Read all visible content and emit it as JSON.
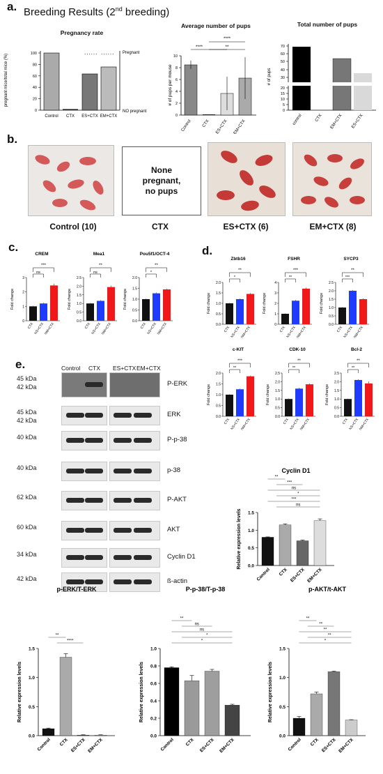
{
  "panels": {
    "a": "a.",
    "b": "b.",
    "c": "c.",
    "d": "d.",
    "e": "e."
  },
  "header": {
    "title_main": "Breeding Results (2",
    "title_sup": "nd",
    "title_end": " breeding)"
  },
  "panel_a": {
    "pregnancy": {
      "title": "Pregnancy rate",
      "ylabel": "pregnant mice/total mice (%)",
      "yticks": [
        "0",
        "20",
        "40",
        "60",
        "80",
        "100"
      ],
      "right_top": "Pregnant",
      "right_bottom": "NO pregnant",
      "dots": "......"
    },
    "pups": {
      "title": "Average number of pups",
      "ylabel": "# of pups per mouse",
      "yticks": [
        "0",
        "2",
        "4",
        "6",
        "8",
        "10"
      ],
      "sig": [
        "****",
        "**",
        "****"
      ]
    },
    "total": {
      "title": "Total number of pups",
      "ylabel": "# of pups",
      "yticks": [
        "0",
        "5",
        "10",
        "15",
        "20",
        "30",
        "40",
        "50",
        "60",
        "70"
      ]
    }
  },
  "panel_b": {
    "none_text": [
      "None",
      "pregnant,",
      "no pups"
    ],
    "labels": [
      "Control (10)",
      "CTX",
      "ES+CTX (6)",
      "EM+CTX (8)"
    ]
  },
  "panel_c": {
    "ylabel": "Fold change",
    "groups": [
      "CTX",
      "NS+CTX",
      "NM+CTX"
    ]
  },
  "panel_d": {
    "ylabel": "Fold change",
    "groups": [
      "CTX",
      "NS+CTX",
      "NM+CTX"
    ]
  },
  "panel_e": {
    "lanes": [
      "Control",
      "CTX",
      "ES+CTX",
      "EM+CTX"
    ],
    "blots": [
      {
        "kda": [
          "45 kDa",
          "42 kDa"
        ],
        "ab": "P-ERK"
      },
      {
        "kda": [
          "45 kDa",
          "42 kDa"
        ],
        "ab": "ERK"
      },
      {
        "kda": [
          "40 kDa"
        ],
        "ab": "P-p-38"
      },
      {
        "kda": [
          "40 kDa"
        ],
        "ab": "p-38"
      },
      {
        "kda": [
          "62 kDa"
        ],
        "ab": "P-AKT"
      },
      {
        "kda": [
          "60 kDa"
        ],
        "ab": "AKT"
      },
      {
        "kda": [
          "34 kDa"
        ],
        "ab": "Cyclin D1"
      },
      {
        "kda": [
          "42 kDa"
        ],
        "ab": "ß-actin"
      }
    ]
  },
  "quant": {
    "ylabel": "Relative expression levels",
    "groups": [
      "Control",
      "CTX",
      "ES+CTX",
      "EM+CTX"
    ]
  },
  "chart_data": [
    {
      "type": "bar",
      "title": "Pregnancy rate",
      "categories": [
        "Control",
        "CTX",
        "ES+CTX",
        "EM+CTX"
      ],
      "values": [
        100,
        0,
        63,
        75
      ],
      "ylabel": "pregnant mice/total mice (%)",
      "ylim": [
        0,
        110
      ]
    },
    {
      "type": "bar",
      "title": "Average number of pups",
      "categories": [
        "Control",
        "CTX",
        "ES+CTX",
        "EM+CTX"
      ],
      "values": [
        8.5,
        0,
        3.6,
        6.2
      ],
      "errors": [
        0.6,
        0.1,
        2.8,
        3.6
      ],
      "ylabel": "# of pups per mouse",
      "ylim": [
        0,
        11
      ]
    },
    {
      "type": "bar",
      "title": "Total number of pups",
      "categories": [
        "control",
        "CTX",
        "EM+CTX",
        "ES+CTX"
      ],
      "values": [
        70,
        0,
        50,
        27
      ],
      "ylabel": "# of pups"
    },
    {
      "type": "bar",
      "title": "CREM",
      "categories": [
        "CTX",
        "NS+CTX",
        "NM+CTX"
      ],
      "values": [
        1.0,
        1.2,
        2.45
      ],
      "errors": [
        0.04,
        0.05,
        0.12
      ],
      "ylim": [
        0,
        3
      ],
      "yticks": [
        "0",
        "1",
        "2",
        "3"
      ],
      "sig": [
        "***",
        "ns"
      ]
    },
    {
      "type": "bar",
      "title": "Mea1",
      "categories": [
        "CTX",
        "NS+CTX",
        "NM+CTX"
      ],
      "values": [
        1.0,
        1.15,
        1.95
      ],
      "errors": [
        0.03,
        0.04,
        0.08
      ],
      "ylim": [
        0,
        2.5
      ],
      "yticks": [
        "0.0",
        "0.5",
        "1.0",
        "1.5",
        "2.0",
        "2.5"
      ],
      "sig": [
        "**",
        "ns"
      ]
    },
    {
      "type": "bar",
      "title": "Pou5f1/OCT-4",
      "categories": [
        "CTX",
        "NS+CTX",
        "NM+CTX"
      ],
      "values": [
        1.0,
        1.27,
        1.45
      ],
      "errors": [
        0.02,
        0.04,
        0.03
      ],
      "ylim": [
        0,
        2
      ],
      "yticks": [
        "0.0",
        "0.5",
        "1.0",
        "1.5",
        "2.0"
      ],
      "sig": [
        "**",
        "*"
      ]
    },
    {
      "type": "bar",
      "title": "Zbtb16",
      "categories": [
        "CTX",
        "NS+CTX",
        "NM+CTX"
      ],
      "values": [
        1.0,
        1.2,
        1.45
      ],
      "errors": [
        0.02,
        0.03,
        0.04
      ],
      "ylim": [
        0,
        2
      ],
      "yticks": [
        "0.0",
        "0.5",
        "1.0",
        "1.5",
        "2.0"
      ],
      "sig": [
        "**",
        "*"
      ]
    },
    {
      "type": "bar",
      "title": "FSHR",
      "categories": [
        "CTX",
        "NS+CTX",
        "NM+CTX"
      ],
      "values": [
        1.0,
        2.25,
        3.4
      ],
      "errors": [
        0.03,
        0.08,
        0.1
      ],
      "ylim": [
        0,
        4
      ],
      "yticks": [
        "0",
        "1",
        "2",
        "3",
        "4"
      ],
      "sig": [
        "***",
        "**"
      ]
    },
    {
      "type": "bar",
      "title": "SYCP3",
      "categories": [
        "CTX",
        "NS+CTX",
        "NM+CTX"
      ],
      "values": [
        1.0,
        2.0,
        1.5
      ],
      "errors": [
        0.02,
        0.05,
        0.05
      ],
      "ylim": [
        0,
        2.5
      ],
      "yticks": [
        "0.0",
        "0.5",
        "1.0",
        "1.5",
        "2.0",
        "2.5"
      ],
      "sig": [
        "**",
        "***"
      ]
    },
    {
      "type": "bar",
      "title": "c-KIT",
      "categories": [
        "CTX",
        "NS+CTX",
        "NM+CTX"
      ],
      "values": [
        1.0,
        1.25,
        1.85
      ],
      "errors": [
        0.02,
        0.03,
        0.03
      ],
      "ylim": [
        0,
        2
      ],
      "yticks": [
        "0.0",
        "0.5",
        "1.0",
        "1.5",
        "2.0"
      ],
      "sig": [
        "***",
        "**"
      ]
    },
    {
      "type": "bar",
      "title": "CDK-10",
      "categories": [
        "CTX",
        "NS+CTX",
        "NM+CTX"
      ],
      "values": [
        1.0,
        1.6,
        1.85
      ],
      "errors": [
        0.03,
        0.05,
        0.05
      ],
      "ylim": [
        0,
        2.5
      ],
      "yticks": [
        "0.0",
        "0.5",
        "1.0",
        "1.5",
        "2.0",
        "2.5"
      ],
      "sig": [
        "**",
        "**"
      ]
    },
    {
      "type": "bar",
      "title": "Bcl-2",
      "categories": [
        "CTX",
        "NS+CTX",
        "NM+CTX"
      ],
      "values": [
        1.0,
        2.1,
        1.9
      ],
      "errors": [
        0.02,
        0.04,
        0.12
      ],
      "ylim": [
        0,
        2.5
      ],
      "yticks": [
        "0.0",
        "0.5",
        "1.0",
        "1.5",
        "2.0",
        "2.5"
      ],
      "sig": [
        "**",
        "**"
      ]
    },
    {
      "type": "bar",
      "title": "Cyclin D1",
      "categories": [
        "Control",
        "CTX",
        "ES+CTX",
        "EM+CTX"
      ],
      "values": [
        0.8,
        1.15,
        0.7,
        1.27
      ],
      "errors": [
        0.01,
        0.03,
        0.02,
        0.05
      ],
      "ylabel": "Relative expression levels",
      "ylim": [
        0,
        1.5
      ],
      "yticks": [
        "0.0",
        "0.5",
        "1.0",
        "1.5"
      ],
      "sig": [
        "**",
        "***",
        "ns",
        "*",
        "***",
        "ns"
      ]
    },
    {
      "type": "bar",
      "title": "p-ERK/T-ERK",
      "categories": [
        "Control",
        "CTX",
        "ES+CTX",
        "EM+CTX"
      ],
      "values": [
        0.12,
        1.35,
        0.01,
        0.01
      ],
      "errors": [
        0.01,
        0.06,
        0.005,
        0.005
      ],
      "ylabel": "Relative expression levels",
      "ylim": [
        0,
        1.5
      ],
      "yticks": [
        "0.0",
        "0.5",
        "1.0",
        "1.5"
      ],
      "sig": [
        "**",
        "****"
      ]
    },
    {
      "type": "bar",
      "title": "P-p-38/T-p-38",
      "categories": [
        "Control",
        "CTX",
        "ES+CTX",
        "EM+CTX"
      ],
      "values": [
        0.78,
        0.63,
        0.74,
        0.35
      ],
      "errors": [
        0.01,
        0.06,
        0.02,
        0.01
      ],
      "ylabel": "Relative expression levels",
      "ylim": [
        0,
        1.0
      ],
      "yticks": [
        "0.0",
        "0.2",
        "0.4",
        "0.6",
        "0.8",
        "1.0"
      ],
      "sig": [
        "**",
        "ns",
        "ns",
        "*",
        "*"
      ]
    },
    {
      "type": "bar",
      "title": "p-AKT/t-AKT",
      "categories": [
        "Control",
        "CTX",
        "ES+CTX",
        "EM+CTX"
      ],
      "values": [
        0.3,
        0.72,
        1.1,
        0.27
      ],
      "errors": [
        0.03,
        0.03,
        0.01,
        0.005
      ],
      "ylabel": "Relative expression levels",
      "ylim": [
        0,
        1.5
      ],
      "yticks": [
        "0.0",
        "0.5",
        "1.0",
        "1.5"
      ],
      "sig": [
        "**",
        "**",
        "**",
        "**",
        "*"
      ]
    }
  ],
  "colors": {
    "black": "#111111",
    "blue": "#1f3bff",
    "red": "#f01818",
    "gray1": "#a9a9a9",
    "gray2": "#7d7d7d",
    "gray3": "#d9d9d9",
    "skin": "#d96060",
    "paper": "#efe9e4"
  }
}
